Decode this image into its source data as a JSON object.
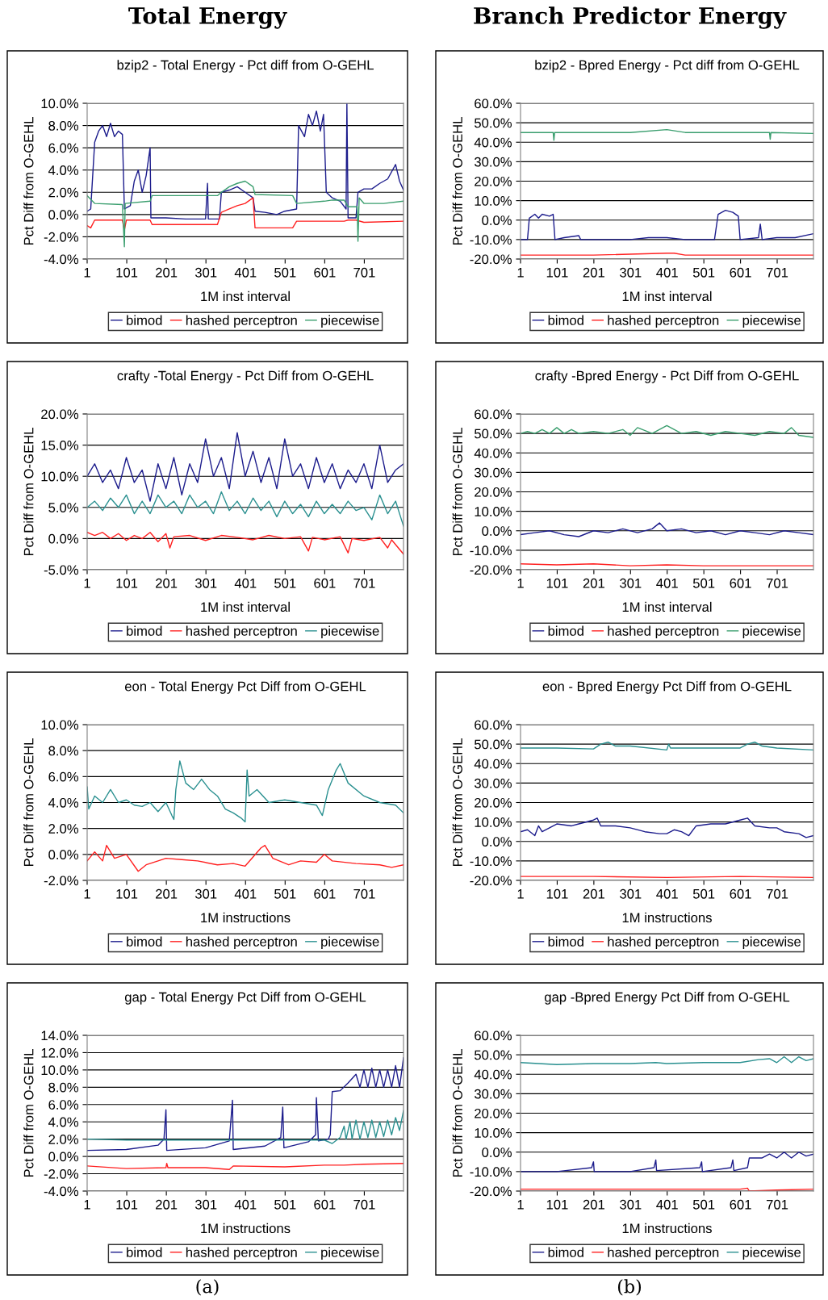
{
  "chart_data": [
    {
      "type": "line",
      "title": "bzip2 - Total Energy - Pct diff from O-GEHL",
      "xlabel": "1M inst interval",
      "ylabel": "Pct Diff from O-GEHL",
      "annotations": [
        "Total Energy",
        "(a)"
      ],
      "grid": "y",
      "legend": "bottom",
      "xlim": [
        1,
        800
      ],
      "xticks": [
        1,
        101,
        201,
        301,
        401,
        501,
        601,
        701
      ],
      "ylim": [
        -4,
        10
      ],
      "yticks": [
        {
          "value": -4,
          "label": "-4.0%"
        },
        {
          "value": -2,
          "label": "-2.0%"
        },
        {
          "value": 0,
          "label": "0.0%"
        },
        {
          "value": 2,
          "label": "2.0%"
        },
        {
          "value": 4,
          "label": "4.0%"
        },
        {
          "value": 6,
          "label": "6.0%"
        },
        {
          "value": 8,
          "label": "8.0%"
        },
        {
          "value": 10,
          "label": "10.0%"
        }
      ],
      "series": [
        {
          "name": "bimod",
          "color": "#1c1c8c",
          "x": [
            1,
            10,
            20,
            30,
            40,
            50,
            60,
            70,
            80,
            90,
            95,
            110,
            120,
            130,
            140,
            150,
            160,
            162,
            200,
            250,
            300,
            305,
            307,
            335,
            340,
            360,
            380,
            400,
            420,
            425,
            450,
            480,
            500,
            530,
            535,
            550,
            560,
            570,
            580,
            590,
            598,
            605,
            620,
            640,
            655,
            657,
            660,
            680,
            685,
            700,
            720,
            740,
            760,
            780,
            790,
            800
          ],
          "values": [
            0.3,
            0.5,
            6.5,
            7.5,
            8.0,
            7.0,
            8.2,
            7.0,
            7.5,
            7.2,
            0.5,
            0.8,
            3.0,
            4.0,
            2.0,
            3.5,
            6.0,
            -0.3,
            -0.3,
            -0.4,
            -0.4,
            2.8,
            -0.4,
            -0.4,
            2.0,
            2.2,
            2.5,
            2.0,
            1.5,
            0.3,
            0.2,
            0,
            0.3,
            0.5,
            8.0,
            7.0,
            9.0,
            8.0,
            9.3,
            7.5,
            9.0,
            2.0,
            1.5,
            1.2,
            0.5,
            10.0,
            -0.3,
            -0.3,
            2.0,
            2.3,
            2.3,
            2.8,
            3.2,
            4.5,
            3.0,
            2.2
          ]
        },
        {
          "name": "hashed perceptron",
          "color": "#ff2020",
          "x": [
            1,
            10,
            20,
            90,
            95,
            100,
            160,
            165,
            330,
            340,
            360,
            380,
            400,
            420,
            425,
            520,
            530,
            650,
            660,
            680,
            700,
            800
          ],
          "values": [
            -1.0,
            -1.2,
            -0.5,
            -0.5,
            -1.4,
            -0.5,
            -0.5,
            -0.9,
            -0.9,
            0.2,
            0.5,
            0.8,
            1.0,
            1.5,
            -1.2,
            -1.2,
            -0.6,
            -0.6,
            -0.5,
            -0.5,
            -0.7,
            -0.6
          ]
        },
        {
          "name": "piecewise",
          "color": "#3a9e6e",
          "x": [
            1,
            20,
            90,
            95,
            97,
            160,
            165,
            330,
            340,
            360,
            380,
            400,
            420,
            425,
            520,
            530,
            600,
            620,
            650,
            660,
            683,
            685,
            688,
            700,
            750,
            800
          ],
          "values": [
            1.7,
            1.0,
            0.9,
            -2.9,
            1.0,
            1.2,
            1.7,
            1.7,
            2.0,
            2.5,
            2.8,
            3.0,
            2.5,
            1.8,
            1.7,
            1.0,
            1.2,
            1.3,
            1.3,
            0.7,
            0.7,
            -2.4,
            1.5,
            1.0,
            1.0,
            1.2
          ]
        }
      ]
    },
    {
      "type": "line",
      "title": "bzip2 - Bpred Energy - Pct diff from O-GEHL",
      "xlabel": "1M inst interval",
      "ylabel": "Pct Diff from O-GEHL",
      "annotations": [
        "Branch Predictor Energy",
        "(b)"
      ],
      "grid": "y",
      "legend": "bottom",
      "xlim": [
        1,
        800
      ],
      "xticks": [
        1,
        101,
        201,
        301,
        401,
        501,
        601,
        701
      ],
      "ylim": [
        -20,
        60
      ],
      "yticks": [
        {
          "value": -20,
          "label": "-20.0%"
        },
        {
          "value": -10,
          "label": "-10.0%"
        },
        {
          "value": 0,
          "label": "0.0%"
        },
        {
          "value": 10,
          "label": "10.0%"
        },
        {
          "value": 20,
          "label": "20.0%"
        },
        {
          "value": 30,
          "label": "30.0%"
        },
        {
          "value": 40,
          "label": "40.0%"
        },
        {
          "value": 50,
          "label": "50.0%"
        },
        {
          "value": 60,
          "label": "60.0%"
        }
      ],
      "series": [
        {
          "name": "bimod",
          "color": "#1c1c8c",
          "x": [
            1,
            20,
            25,
            40,
            50,
            60,
            80,
            90,
            95,
            120,
            160,
            165,
            300,
            350,
            400,
            450,
            530,
            540,
            560,
            580,
            595,
            600,
            650,
            655,
            660,
            700,
            750,
            800
          ],
          "values": [
            -10,
            -10,
            1,
            3,
            1,
            3,
            2,
            3,
            -10,
            -9,
            -8,
            -10,
            -10,
            -9,
            -9,
            -10,
            -10,
            3,
            5,
            4,
            2,
            -10,
            -9,
            -2,
            -10,
            -9,
            -9,
            -7
          ]
        },
        {
          "name": "hashed perceptron",
          "color": "#ff2020",
          "x": [
            1,
            200,
            400,
            420,
            450,
            800
          ],
          "values": [
            -18,
            -18,
            -17,
            -17,
            -18,
            -18
          ]
        },
        {
          "name": "piecewise",
          "color": "#3a9e6e",
          "x": [
            1,
            90,
            92,
            94,
            300,
            400,
            450,
            680,
            682,
            684,
            800
          ],
          "values": [
            45,
            45,
            41,
            45,
            45,
            46.5,
            45,
            45,
            41.5,
            45,
            44.5
          ]
        }
      ]
    },
    {
      "type": "line",
      "title": "crafty -Total Energy - Pct Diff from O-GEHL",
      "xlabel": "1M inst interval",
      "ylabel": "Pct Diff from O-GEHL",
      "grid": "y",
      "legend": "bottom",
      "xlim": [
        1,
        800
      ],
      "xticks": [
        1,
        101,
        201,
        301,
        401,
        501,
        601,
        701
      ],
      "ylim": [
        -5,
        20
      ],
      "yticks": [
        {
          "value": -5,
          "label": "-5.0%"
        },
        {
          "value": 0,
          "label": "0.0%"
        },
        {
          "value": 5,
          "label": "5.0%"
        },
        {
          "value": 10,
          "label": "10.0%"
        },
        {
          "value": 15,
          "label": "15.0%"
        },
        {
          "value": 20,
          "label": "20.0%"
        }
      ],
      "series": [
        {
          "name": "bimod",
          "color": "#1c1c8c",
          "x": [
            1,
            20,
            40,
            60,
            80,
            100,
            120,
            140,
            160,
            180,
            200,
            220,
            240,
            260,
            280,
            300,
            320,
            340,
            360,
            380,
            400,
            420,
            440,
            460,
            480,
            500,
            520,
            540,
            560,
            580,
            600,
            620,
            640,
            660,
            680,
            700,
            720,
            740,
            760,
            780,
            800
          ],
          "values": [
            10,
            12,
            9,
            11,
            8,
            13,
            9,
            11,
            6,
            12,
            8,
            13,
            7,
            12,
            9,
            16,
            10,
            13,
            8,
            17,
            10,
            14,
            9,
            13,
            8,
            16,
            10,
            12,
            8,
            13,
            9,
            12,
            8,
            11,
            9,
            12,
            8,
            15,
            9,
            11,
            12
          ]
        },
        {
          "name": "hashed perceptron",
          "color": "#ff2020",
          "x": [
            1,
            20,
            40,
            60,
            80,
            100,
            120,
            140,
            160,
            180,
            200,
            210,
            220,
            260,
            300,
            340,
            380,
            420,
            460,
            500,
            540,
            560,
            570,
            600,
            640,
            660,
            670,
            700,
            740,
            760,
            770,
            800
          ],
          "values": [
            1,
            0.5,
            1,
            0,
            0.8,
            -0.3,
            0.5,
            0,
            1,
            -0.5,
            0.8,
            -1.5,
            0.3,
            0.5,
            -0.3,
            0.5,
            0.2,
            -0.2,
            0.5,
            0,
            0.3,
            -2,
            0.2,
            -0.2,
            0.3,
            -2.3,
            0,
            -0.3,
            0.2,
            -1.5,
            -0.2,
            -2.5
          ]
        },
        {
          "name": "piecewise",
          "color": "#2a9090",
          "x": [
            1,
            20,
            40,
            60,
            80,
            100,
            120,
            140,
            160,
            180,
            200,
            220,
            240,
            260,
            280,
            300,
            320,
            340,
            360,
            380,
            400,
            420,
            440,
            460,
            480,
            500,
            520,
            540,
            560,
            580,
            600,
            620,
            640,
            660,
            680,
            700,
            720,
            740,
            760,
            780,
            800
          ],
          "values": [
            5,
            6,
            4.5,
            6.5,
            5,
            7,
            4,
            6,
            4,
            7,
            5,
            6,
            4,
            7,
            5,
            6,
            4,
            7.5,
            4.5,
            6,
            4,
            6.5,
            4.5,
            6,
            3.5,
            6,
            4,
            5.5,
            3.5,
            6,
            4,
            5.5,
            4,
            6,
            4.5,
            5,
            3,
            7,
            4,
            6,
            2
          ]
        }
      ]
    },
    {
      "type": "line",
      "title": "crafty -Bpred Energy - Pct Diff from O-GEHL",
      "xlabel": "1M inst interval",
      "ylabel": "Pct Diff from O-GEHL",
      "grid": "y",
      "legend": "bottom",
      "xlim": [
        1,
        800
      ],
      "xticks": [
        1,
        101,
        201,
        301,
        401,
        501,
        601,
        701
      ],
      "ylim": [
        -20,
        60
      ],
      "yticks": [
        {
          "value": -20,
          "label": "-20.0%"
        },
        {
          "value": -10,
          "label": "-10.0%"
        },
        {
          "value": 0,
          "label": "0.0%"
        },
        {
          "value": 10,
          "label": "10.0%"
        },
        {
          "value": 20,
          "label": "20.0%"
        },
        {
          "value": 30,
          "label": "30.0%"
        },
        {
          "value": 40,
          "label": "40.0%"
        },
        {
          "value": 50,
          "label": "50.0%"
        },
        {
          "value": 60,
          "label": "60.0%"
        }
      ],
      "series": [
        {
          "name": "bimod",
          "color": "#1c1c8c",
          "x": [
            1,
            40,
            80,
            120,
            160,
            200,
            240,
            280,
            320,
            360,
            380,
            400,
            440,
            480,
            520,
            560,
            600,
            640,
            680,
            720,
            760,
            800
          ],
          "values": [
            -2,
            -1,
            0,
            -2,
            -3,
            0,
            -1,
            1,
            -1,
            1,
            4,
            0,
            1,
            -1,
            0,
            -2,
            0,
            -1,
            -2,
            0,
            -1,
            -2
          ]
        },
        {
          "name": "hashed perceptron",
          "color": "#ff2020",
          "x": [
            1,
            100,
            200,
            300,
            400,
            500,
            600,
            700,
            800
          ],
          "values": [
            -17,
            -17.5,
            -17,
            -18,
            -17.5,
            -18,
            -18,
            -18,
            -18
          ]
        },
        {
          "name": "piecewise",
          "color": "#3a9e6e",
          "x": [
            1,
            20,
            40,
            60,
            80,
            100,
            120,
            140,
            160,
            200,
            240,
            280,
            300,
            320,
            360,
            400,
            440,
            480,
            520,
            560,
            600,
            640,
            680,
            720,
            740,
            760,
            800
          ],
          "values": [
            50,
            51,
            50,
            52,
            50,
            53,
            50,
            52,
            50,
            51,
            50,
            52,
            49,
            53,
            50,
            54,
            50,
            51,
            49,
            51,
            50,
            49,
            51,
            50,
            53,
            49,
            48
          ]
        }
      ]
    },
    {
      "type": "line",
      "title": "eon - Total Energy Pct Diff from O-GEHL",
      "xlabel": "1M instructions",
      "ylabel": "Pct Diff from O-GEHL",
      "grid": "y",
      "legend": "bottom",
      "xlim": [
        1,
        800
      ],
      "xticks": [
        1,
        101,
        201,
        301,
        401,
        501,
        601,
        701
      ],
      "ylim": [
        -2,
        10
      ],
      "yticks": [
        {
          "value": -2,
          "label": "-2.0%"
        },
        {
          "value": 0,
          "label": "0.0%"
        },
        {
          "value": 2,
          "label": "2.0%"
        },
        {
          "value": 4,
          "label": "4.0%"
        },
        {
          "value": 6,
          "label": "6.0%"
        },
        {
          "value": 8,
          "label": "8.0%"
        },
        {
          "value": 10,
          "label": "10.0%"
        }
      ],
      "series": [
        {
          "name": "bimod",
          "color": "#1c1c8c"
        },
        {
          "name": "hashed perceptron",
          "color": "#ff2020",
          "x": [
            1,
            20,
            40,
            50,
            70,
            100,
            130,
            150,
            180,
            200,
            240,
            280,
            330,
            370,
            400,
            420,
            440,
            450,
            470,
            510,
            540,
            580,
            600,
            620,
            680,
            740,
            770,
            800
          ],
          "values": [
            -0.5,
            0.2,
            -0.5,
            0.7,
            -0.3,
            0,
            -1.3,
            -0.8,
            -0.5,
            -0.3,
            -0.4,
            -0.5,
            -0.8,
            -0.7,
            -0.9,
            -0.2,
            0.5,
            0.7,
            -0.3,
            -0.8,
            -0.5,
            -0.6,
            0,
            -0.5,
            -0.7,
            -0.8,
            -1.0,
            -0.8
          ]
        },
        {
          "name": "piecewise",
          "color": "#2a9090",
          "x": [
            1,
            5,
            20,
            40,
            60,
            80,
            100,
            120,
            140,
            160,
            180,
            200,
            215,
            220,
            225,
            235,
            250,
            270,
            290,
            310,
            330,
            350,
            370,
            390,
            400,
            405,
            410,
            430,
            460,
            500,
            540,
            580,
            595,
            610,
            630,
            640,
            660,
            700,
            740,
            780,
            800
          ],
          "values": [
            5.2,
            3.5,
            4.5,
            4.0,
            5.0,
            4.0,
            4.2,
            3.8,
            3.7,
            4.0,
            3.3,
            4.0,
            3.0,
            2.7,
            5.0,
            7.2,
            5.5,
            5.0,
            5.8,
            5.0,
            4.5,
            3.5,
            3.2,
            2.8,
            2.5,
            6.5,
            4.5,
            5.0,
            4.0,
            4.2,
            4.0,
            3.8,
            3.0,
            5.0,
            6.5,
            7.0,
            5.5,
            4.5,
            4.0,
            3.8,
            3.2
          ]
        }
      ]
    },
    {
      "type": "line",
      "title": "eon - Bpred Energy Pct Diff from O-GEHL",
      "xlabel": "1M instructions",
      "ylabel": "Pct Diff from O-GEHL",
      "grid": "y",
      "legend": "bottom",
      "xlim": [
        1,
        800
      ],
      "xticks": [
        1,
        101,
        201,
        301,
        401,
        501,
        601,
        701
      ],
      "ylim": [
        -20,
        60
      ],
      "yticks": [
        {
          "value": -20,
          "label": "-20.0%"
        },
        {
          "value": -10,
          "label": "-10.0%"
        },
        {
          "value": 0,
          "label": "0.0%"
        },
        {
          "value": 10,
          "label": "10.0%"
        },
        {
          "value": 20,
          "label": "20.0%"
        },
        {
          "value": 30,
          "label": "30.0%"
        },
        {
          "value": 40,
          "label": "40.0%"
        },
        {
          "value": 50,
          "label": "50.0%"
        },
        {
          "value": 60,
          "label": "60.0%"
        }
      ],
      "series": [
        {
          "name": "bimod",
          "color": "#1c1c8c",
          "x": [
            1,
            20,
            40,
            50,
            60,
            100,
            140,
            160,
            200,
            210,
            220,
            260,
            300,
            340,
            380,
            400,
            420,
            440,
            460,
            480,
            520,
            560,
            600,
            620,
            640,
            680,
            700,
            720,
            760,
            780,
            800
          ],
          "values": [
            5,
            6,
            3,
            8,
            5,
            9,
            8,
            9,
            11,
            12,
            8,
            8,
            7,
            5,
            4,
            4,
            6,
            5,
            3,
            8,
            9,
            9,
            11,
            12,
            8,
            7,
            7,
            5,
            4,
            2,
            3
          ]
        },
        {
          "name": "hashed perceptron",
          "color": "#ff2020",
          "x": [
            1,
            200,
            400,
            600,
            800
          ],
          "values": [
            -18,
            -18,
            -18.5,
            -18,
            -18.5
          ]
        },
        {
          "name": "piecewise",
          "color": "#2a9090",
          "x": [
            1,
            100,
            200,
            220,
            240,
            260,
            300,
            400,
            405,
            410,
            500,
            600,
            620,
            640,
            660,
            700,
            800
          ],
          "values": [
            48,
            48,
            47.5,
            50,
            51,
            49,
            49,
            47,
            50,
            48,
            48,
            48,
            50,
            51,
            49,
            48,
            47
          ]
        }
      ]
    },
    {
      "type": "line",
      "title": "gap - Total Energy Pct Diff from O-GEHL",
      "xlabel": "1M instructions",
      "ylabel": "Pct Diff from O-GEHL",
      "grid": "y",
      "legend": "bottom",
      "xlim": [
        1,
        800
      ],
      "xticks": [
        1,
        101,
        201,
        301,
        401,
        501,
        601,
        701
      ],
      "ylim": [
        -4,
        14
      ],
      "yticks": [
        {
          "value": -4,
          "label": "-4.0%"
        },
        {
          "value": -2,
          "label": "-2.0%"
        },
        {
          "value": 0,
          "label": "0.0%"
        },
        {
          "value": 2,
          "label": "2.0%"
        },
        {
          "value": 4,
          "label": "4.0%"
        },
        {
          "value": 6,
          "label": "6.0%"
        },
        {
          "value": 8,
          "label": "8.0%"
        },
        {
          "value": 10,
          "label": "10.0%"
        },
        {
          "value": 12,
          "label": "12.0%"
        },
        {
          "value": 14,
          "label": "14.0%"
        }
      ],
      "series": [
        {
          "name": "bimod",
          "color": "#1c1c8c",
          "x": [
            1,
            100,
            180,
            195,
            200,
            202,
            300,
            360,
            368,
            370,
            450,
            490,
            495,
            498,
            560,
            578,
            580,
            585,
            610,
            615,
            620,
            640,
            660,
            680,
            690,
            700,
            710,
            720,
            730,
            740,
            750,
            760,
            770,
            780,
            790,
            800
          ],
          "values": [
            0.7,
            0.8,
            1.3,
            2,
            5.4,
            0.7,
            1.0,
            1.8,
            6.5,
            0.8,
            1.2,
            2.2,
            5.7,
            1.0,
            1.7,
            2.5,
            6.8,
            1.8,
            2,
            2.5,
            7.5,
            7.6,
            8.5,
            9.5,
            8,
            10,
            8,
            10.2,
            8,
            10,
            8,
            10,
            8,
            10.5,
            8,
            11.4
          ]
        },
        {
          "name": "hashed perceptron",
          "color": "#ff2020",
          "x": [
            1,
            100,
            200,
            202,
            205,
            300,
            360,
            370,
            500,
            600,
            650,
            700,
            800
          ],
          "values": [
            -1.1,
            -1.4,
            -1.3,
            -0.8,
            -1.3,
            -1.3,
            -1.5,
            -1.1,
            -1.2,
            -1.0,
            -1.0,
            -0.9,
            -0.8
          ]
        },
        {
          "name": "piecewise",
          "color": "#2a9090",
          "x": [
            1,
            100,
            200,
            300,
            400,
            500,
            600,
            620,
            640,
            650,
            655,
            665,
            670,
            680,
            690,
            700,
            710,
            720,
            730,
            740,
            750,
            760,
            770,
            780,
            790,
            800
          ],
          "values": [
            2.0,
            1.9,
            1.9,
            1.9,
            1.9,
            1.9,
            1.9,
            1.5,
            2.2,
            3.5,
            2,
            4,
            2,
            4.2,
            2,
            4,
            2.2,
            4.2,
            2.2,
            4,
            2.3,
            4.2,
            2.5,
            4.5,
            3,
            5.3
          ]
        }
      ]
    },
    {
      "type": "line",
      "title": "gap -Bpred Energy Pct Diff from O-GEHL",
      "xlabel": "1M instructions",
      "ylabel": "Pct Diff from O-GEHL",
      "grid": "y",
      "legend": "bottom",
      "xlim": [
        1,
        800
      ],
      "xticks": [
        1,
        101,
        201,
        301,
        401,
        501,
        601,
        701
      ],
      "ylim": [
        -20,
        60
      ],
      "yticks": [
        {
          "value": -20,
          "label": "-20.0%"
        },
        {
          "value": -10,
          "label": "-10.0%"
        },
        {
          "value": 0,
          "label": "0.0%"
        },
        {
          "value": 10,
          "label": "10.0%"
        },
        {
          "value": 20,
          "label": "20.0%"
        },
        {
          "value": 30,
          "label": "30.0%"
        },
        {
          "value": 40,
          "label": "40.0%"
        },
        {
          "value": 50,
          "label": "50.0%"
        },
        {
          "value": 60,
          "label": "60.0%"
        }
      ],
      "series": [
        {
          "name": "bimod",
          "color": "#1c1c8c",
          "x": [
            1,
            100,
            195,
            200,
            202,
            300,
            365,
            370,
            372,
            490,
            495,
            497,
            575,
            580,
            583,
            620,
            625,
            660,
            680,
            700,
            720,
            740,
            760,
            780,
            800
          ],
          "values": [
            -10,
            -10,
            -8,
            -5,
            -10,
            -10,
            -8,
            -4,
            -9.5,
            -8,
            -5,
            -10,
            -8,
            -4,
            -9.5,
            -8,
            -3,
            -3,
            -1,
            -3,
            0,
            -3,
            0,
            -2,
            -1
          ]
        },
        {
          "name": "hashed perceptron",
          "color": "#ff2020",
          "x": [
            1,
            200,
            400,
            600,
            620,
            625,
            700,
            800
          ],
          "values": [
            -19,
            -19,
            -19,
            -19,
            -18.5,
            -20,
            -19.5,
            -19
          ]
        },
        {
          "name": "piecewise",
          "color": "#2a9090",
          "x": [
            1,
            100,
            200,
            300,
            370,
            400,
            500,
            600,
            650,
            680,
            700,
            720,
            740,
            760,
            780,
            800
          ],
          "values": [
            46,
            45,
            45.5,
            45.5,
            46,
            45.5,
            46,
            46,
            47.5,
            48,
            46,
            49,
            46,
            49,
            47,
            48
          ]
        }
      ]
    }
  ]
}
